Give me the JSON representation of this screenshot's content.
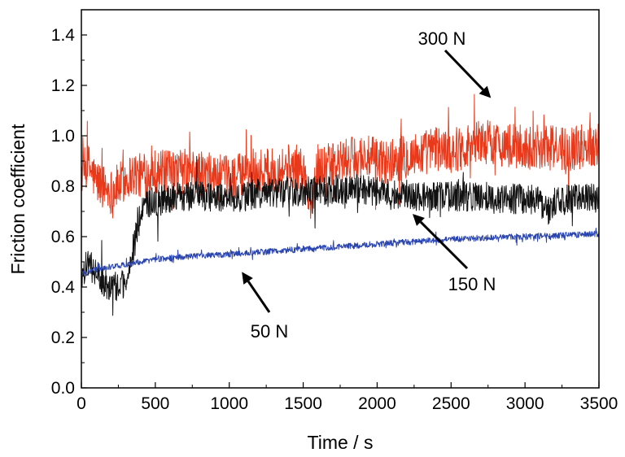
{
  "chart_data": {
    "type": "line",
    "xlabel": "Time / s",
    "ylabel": "Friction coefficient",
    "xlim": [
      0,
      3500
    ],
    "ylim": [
      0.0,
      1.5
    ],
    "xticks": [
      "0",
      "500",
      "1000",
      "1500",
      "2000",
      "2500",
      "3000",
      "3500"
    ],
    "yticks": [
      "0.0",
      "0.2",
      "0.4",
      "0.6",
      "0.8",
      "1.0",
      "1.2",
      "1.4"
    ],
    "grid": false,
    "legend": "none",
    "series": [
      {
        "name": "300 N",
        "color": "#e8391b",
        "x": [
          0,
          50,
          100,
          150,
          200,
          250,
          300,
          350,
          400,
          500,
          600,
          700,
          800,
          900,
          1000,
          1100,
          1200,
          1300,
          1400,
          1500,
          1550,
          1600,
          1700,
          1800,
          1900,
          2000,
          2100,
          2200,
          2300,
          2400,
          2500,
          2600,
          2700,
          2800,
          2900,
          3000,
          3100,
          3200,
          3300,
          3400,
          3500
        ],
        "values": [
          0.85,
          0.88,
          0.82,
          0.8,
          0.78,
          0.8,
          0.83,
          0.85,
          0.84,
          0.86,
          0.85,
          0.86,
          0.85,
          0.84,
          0.83,
          0.85,
          0.86,
          0.86,
          0.88,
          0.87,
          0.7,
          0.88,
          0.88,
          0.9,
          0.92,
          0.9,
          0.9,
          0.92,
          0.93,
          0.95,
          0.94,
          0.96,
          0.98,
          0.97,
          0.96,
          0.95,
          0.96,
          0.95,
          0.95,
          0.96,
          0.97
        ],
        "noise": 0.09
      },
      {
        "name": "150 N",
        "color": "#111111",
        "x": [
          0,
          50,
          100,
          150,
          200,
          250,
          300,
          350,
          400,
          450,
          500,
          600,
          700,
          800,
          900,
          1000,
          1100,
          1200,
          1300,
          1400,
          1500,
          1600,
          1700,
          1800,
          1900,
          2000,
          2100,
          2200,
          2300,
          2400,
          2500,
          2600,
          2700,
          2800,
          2900,
          3000,
          3100,
          3150,
          3200,
          3300,
          3400,
          3500
        ],
        "values": [
          0.45,
          0.5,
          0.45,
          0.42,
          0.4,
          0.4,
          0.42,
          0.55,
          0.68,
          0.73,
          0.74,
          0.75,
          0.76,
          0.76,
          0.76,
          0.75,
          0.76,
          0.77,
          0.77,
          0.78,
          0.78,
          0.78,
          0.79,
          0.78,
          0.79,
          0.78,
          0.77,
          0.77,
          0.76,
          0.76,
          0.76,
          0.76,
          0.76,
          0.75,
          0.75,
          0.75,
          0.74,
          0.7,
          0.74,
          0.75,
          0.75,
          0.75
        ],
        "noise": 0.06
      },
      {
        "name": "50 N",
        "color": "#2a45b0",
        "x": [
          0,
          100,
          200,
          300,
          400,
          500,
          700,
          1000,
          1500,
          2000,
          2500,
          3000,
          3500
        ],
        "values": [
          0.45,
          0.47,
          0.48,
          0.49,
          0.5,
          0.51,
          0.52,
          0.53,
          0.55,
          0.57,
          0.59,
          0.6,
          0.61
        ],
        "noise": 0.012
      }
    ],
    "annotations": [
      {
        "text": "300 N",
        "x": 2770,
        "y": 1.15
      },
      {
        "text": "150 N",
        "x": 2350,
        "y": 0.45
      },
      {
        "text": "50 N",
        "x": 1010,
        "y": 0.21
      }
    ]
  }
}
